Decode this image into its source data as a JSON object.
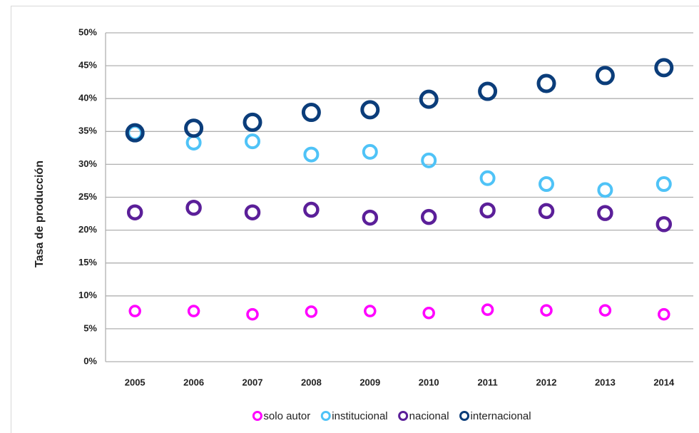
{
  "chart_data": {
    "type": "scatter",
    "y_label": "Tasa de producción",
    "categories": [
      "2005",
      "2006",
      "2007",
      "2008",
      "2009",
      "2010",
      "2011",
      "2012",
      "2013",
      "2014"
    ],
    "series": [
      {
        "name": "solo autor",
        "color": "#ff00ff",
        "values": [
          7.7,
          7.7,
          7.2,
          7.6,
          7.7,
          7.4,
          7.9,
          7.8,
          7.8,
          7.2
        ]
      },
      {
        "name": "institucional",
        "color": "#4fc3f7",
        "values": [
          34.8,
          33.3,
          33.5,
          31.5,
          31.9,
          30.6,
          27.9,
          27.0,
          26.1,
          27.0
        ]
      },
      {
        "name": "nacional",
        "color": "#5b1f99",
        "values": [
          22.7,
          23.4,
          22.7,
          23.1,
          21.9,
          22.0,
          23.0,
          22.9,
          22.6,
          20.9
        ]
      },
      {
        "name": "internacional",
        "color": "#0b3d7a",
        "values": [
          34.8,
          35.5,
          36.4,
          37.9,
          38.3,
          39.9,
          41.1,
          42.3,
          43.5,
          44.7
        ]
      }
    ],
    "ylim": [
      0,
      50
    ],
    "yticks": [
      {
        "value": 0,
        "label": "0%"
      },
      {
        "value": 5,
        "label": "5%"
      },
      {
        "value": 10,
        "label": "10%"
      },
      {
        "value": 15,
        "label": "15%"
      },
      {
        "value": 20,
        "label": "20%"
      },
      {
        "value": 25,
        "label": "25%"
      },
      {
        "value": 30,
        "label": "30%"
      },
      {
        "value": 35,
        "label": "35%"
      },
      {
        "value": 40,
        "label": "40%"
      },
      {
        "value": 45,
        "label": "45%"
      },
      {
        "value": 50,
        "label": "50%"
      }
    ],
    "grid": true,
    "legend": "bottom"
  }
}
